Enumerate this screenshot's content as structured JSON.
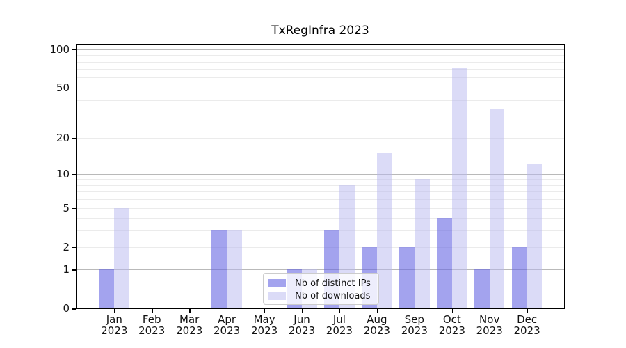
{
  "chart_data": {
    "type": "bar",
    "title": "TxRegInfra 2023",
    "categories": [
      "Jan",
      "Feb",
      "Mar",
      "Apr",
      "May",
      "Jun",
      "Jul",
      "Aug",
      "Sep",
      "Oct",
      "Nov",
      "Dec"
    ],
    "x_year_label": "2023",
    "series": [
      {
        "name": "Nb of distinct IPs",
        "color": "#a3a3ee",
        "rgba": "rgba(102,102,227,0.6)",
        "values": [
          1,
          0,
          0,
          3,
          0,
          1,
          3,
          2,
          2,
          4,
          1,
          2
        ]
      },
      {
        "name": "Nb of downloads",
        "color": "#dbdbf8",
        "rgba": "rgba(184,184,240,0.5)",
        "values": [
          5,
          0,
          0,
          3,
          0,
          1,
          8,
          15,
          9,
          72,
          34,
          12
        ]
      }
    ],
    "yscale": "log1p",
    "ylim": [
      0,
      109
    ],
    "ytick_values": [
      100,
      50,
      20,
      10,
      5,
      2,
      1,
      0
    ],
    "major_gridlines": [
      1,
      10,
      100
    ],
    "minor_gridlines": [
      2,
      3,
      4,
      5,
      6,
      7,
      8,
      9,
      20,
      30,
      40,
      50,
      60,
      70,
      80,
      90
    ],
    "grid": true,
    "legend_position": "lower center",
    "axis_color": "#000000",
    "major_grid_color": "#b9b9b9",
    "minor_grid_color": "#ebebeb",
    "tick_text_color": "#111111"
  }
}
